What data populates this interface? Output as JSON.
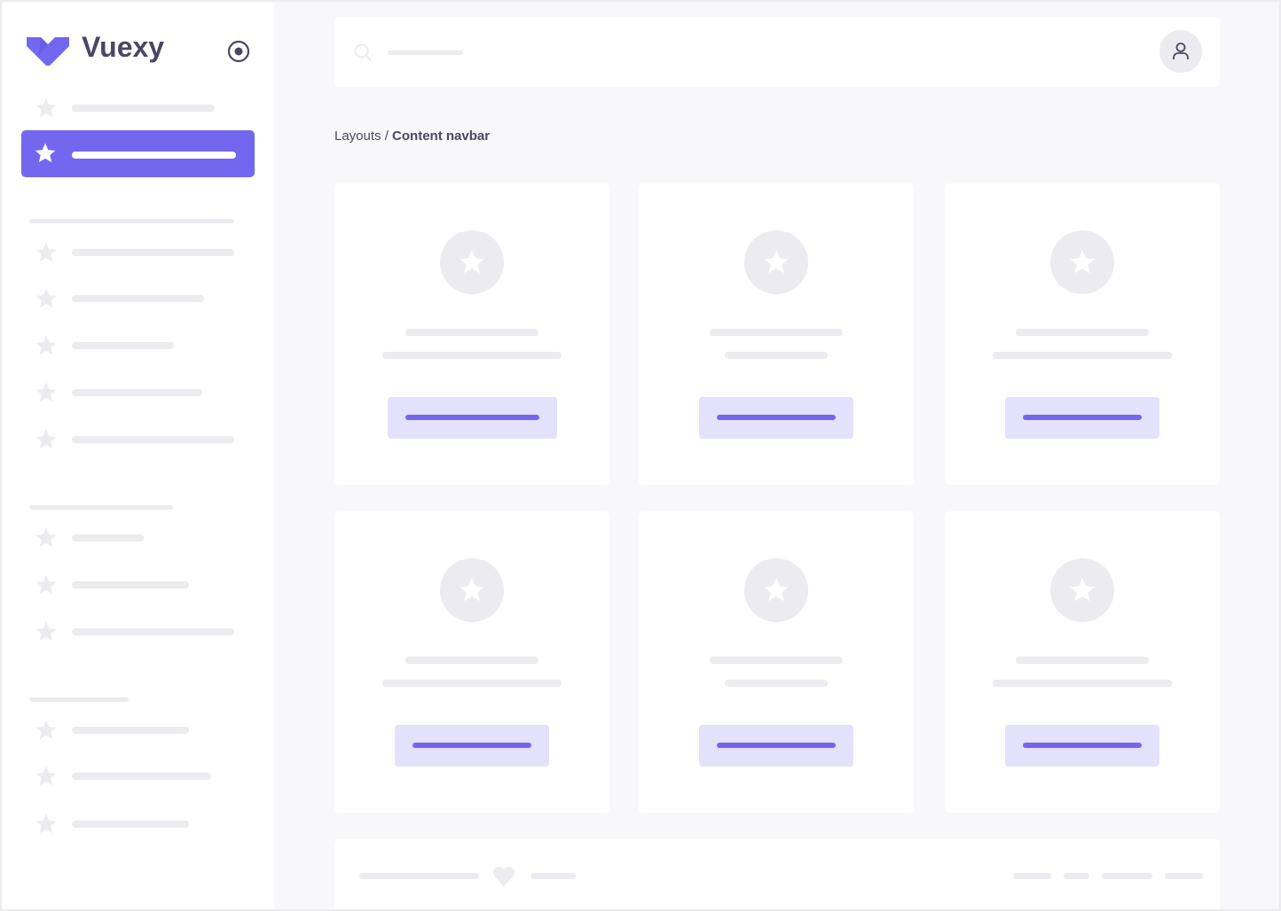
{
  "app": {
    "name": "Vuexy",
    "accent": "#7367f0",
    "logo_icon": "vuexy-v-logo",
    "toggle_icon": "radio-circle-icon"
  },
  "navbar": {
    "search_icon": "search-icon",
    "avatar_icon": "user-icon"
  },
  "breadcrumb": {
    "parent": "Layouts / ",
    "current": "Content navbar"
  },
  "footer": {
    "icon": "heart-icon"
  }
}
